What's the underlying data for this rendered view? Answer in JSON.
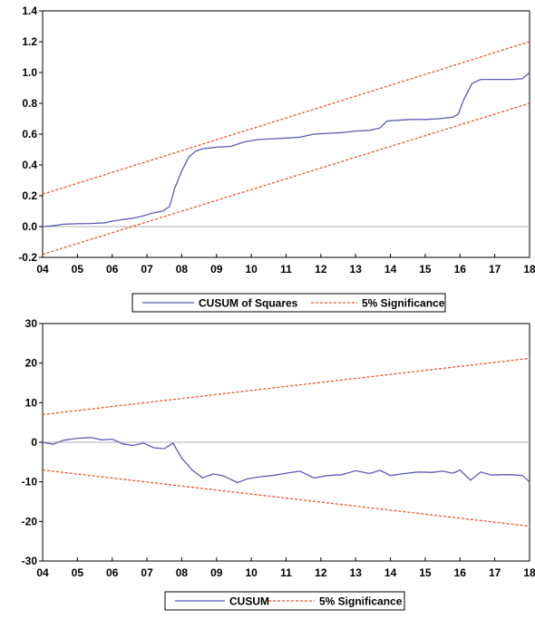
{
  "chart_data": [
    {
      "type": "line",
      "title": "",
      "xlabel": "",
      "ylabel": "",
      "x_ticks": [
        "04",
        "05",
        "06",
        "07",
        "08",
        "09",
        "10",
        "11",
        "12",
        "13",
        "14",
        "15",
        "16",
        "17",
        "18"
      ],
      "y_ticks": [
        "1.4",
        "1.2",
        "1.0",
        "0.8",
        "0.6",
        "0.4",
        "0.2",
        "0.0",
        "-0.2"
      ],
      "xlim": [
        2004,
        2018
      ],
      "ylim": [
        -0.2,
        1.4
      ],
      "grid": false,
      "zero_line": true,
      "legend_position": "bottom-center",
      "series": [
        {
          "name": "CUSUM of Squares",
          "color": "#5b5bb5",
          "style": "solid",
          "x": [
            2004.0,
            2004.3,
            2004.6,
            2005.0,
            2005.4,
            2005.8,
            2006.0,
            2006.3,
            2006.6,
            2006.9,
            2007.2,
            2007.45,
            2007.65,
            2007.8,
            2008.0,
            2008.2,
            2008.4,
            2008.6,
            2008.8,
            2009.0,
            2009.4,
            2009.8,
            2010.2,
            2010.6,
            2011.0,
            2011.4,
            2011.8,
            2012.2,
            2012.6,
            2013.0,
            2013.4,
            2013.7,
            2013.9,
            2014.2,
            2014.6,
            2015.0,
            2015.4,
            2015.8,
            2015.95,
            2016.1,
            2016.35,
            2016.6,
            2016.9,
            2017.2,
            2017.5,
            2017.8,
            2018.0
          ],
          "y": [
            0.0,
            0.005,
            0.015,
            0.018,
            0.02,
            0.025,
            0.035,
            0.045,
            0.055,
            0.07,
            0.09,
            0.1,
            0.13,
            0.25,
            0.36,
            0.45,
            0.49,
            0.505,
            0.51,
            0.515,
            0.52,
            0.55,
            0.565,
            0.57,
            0.575,
            0.58,
            0.6,
            0.605,
            0.61,
            0.62,
            0.625,
            0.64,
            0.685,
            0.69,
            0.695,
            0.695,
            0.7,
            0.71,
            0.73,
            0.82,
            0.93,
            0.955,
            0.955,
            0.955,
            0.955,
            0.96,
            1.0
          ]
        },
        {
          "name": "5% Significance",
          "color": "#e8552a",
          "style": "dashed",
          "x": [
            2004,
            2018
          ],
          "y": [
            0.21,
            1.2
          ]
        },
        {
          "name": "",
          "color": "#e8552a",
          "style": "dashed",
          "x": [
            2004,
            2018
          ],
          "y": [
            -0.18,
            0.8
          ]
        }
      ]
    },
    {
      "type": "line",
      "title": "",
      "xlabel": "",
      "ylabel": "",
      "x_ticks": [
        "04",
        "05",
        "06",
        "07",
        "08",
        "09",
        "10",
        "11",
        "12",
        "13",
        "14",
        "15",
        "16",
        "17",
        "18"
      ],
      "y_ticks": [
        "30",
        "20",
        "10",
        "0",
        "-10",
        "-20",
        "-30"
      ],
      "xlim": [
        2004,
        2018
      ],
      "ylim": [
        -30,
        30
      ],
      "grid": false,
      "zero_line": true,
      "legend_position": "bottom-center",
      "series": [
        {
          "name": "CUSUM",
          "color": "#5b5bb5",
          "style": "solid",
          "x": [
            2004.0,
            2004.3,
            2004.6,
            2005.0,
            2005.4,
            2005.7,
            2006.0,
            2006.3,
            2006.6,
            2006.9,
            2007.2,
            2007.5,
            2007.75,
            2008.0,
            2008.3,
            2008.6,
            2008.9,
            2009.2,
            2009.6,
            2009.9,
            2010.2,
            2010.6,
            2011.0,
            2011.4,
            2011.8,
            2012.2,
            2012.6,
            2013.0,
            2013.4,
            2013.7,
            2014.0,
            2014.4,
            2014.8,
            2015.2,
            2015.5,
            2015.8,
            2016.0,
            2016.3,
            2016.6,
            2016.9,
            2017.2,
            2017.5,
            2017.8,
            2018.0
          ],
          "y": [
            0.0,
            -0.5,
            0.5,
            1.0,
            1.2,
            0.6,
            0.8,
            -0.4,
            -0.8,
            -0.2,
            -1.4,
            -1.6,
            -0.2,
            -4.0,
            -7.0,
            -9.0,
            -8.0,
            -8.5,
            -10.2,
            -9.2,
            -8.8,
            -8.4,
            -7.8,
            -7.3,
            -9.0,
            -8.4,
            -8.2,
            -7.2,
            -7.9,
            -7.1,
            -8.4,
            -7.9,
            -7.5,
            -7.6,
            -7.3,
            -7.8,
            -7.0,
            -9.6,
            -7.5,
            -8.3,
            -8.2,
            -8.2,
            -8.4,
            -10.0
          ]
        },
        {
          "name": "5% Significance",
          "color": "#e8552a",
          "style": "dashed",
          "x": [
            2004,
            2018
          ],
          "y": [
            7.0,
            21.2
          ]
        },
        {
          "name": "",
          "color": "#e8552a",
          "style": "dashed",
          "x": [
            2004,
            2018
          ],
          "y": [
            -7.0,
            -21.2
          ]
        }
      ]
    }
  ]
}
